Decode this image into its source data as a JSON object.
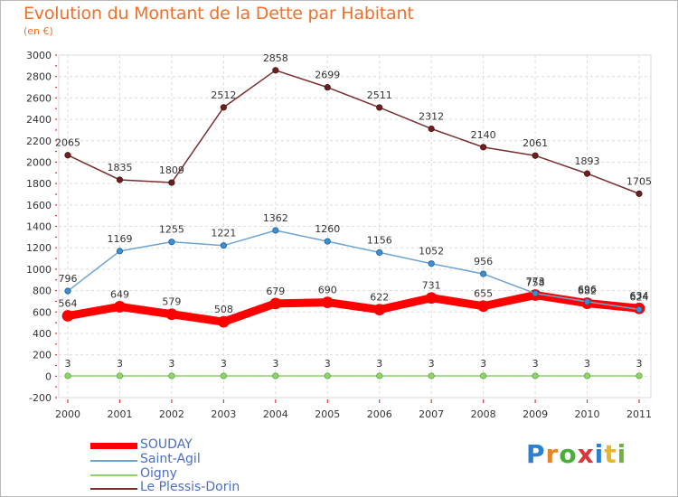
{
  "title": "Evolution du Montant de la Dette par Habitant",
  "subtitle": "(en €)",
  "logo_text": "Proxiti",
  "chart_data": {
    "type": "line",
    "x": [
      "2000",
      "2001",
      "2002",
      "2003",
      "2004",
      "2005",
      "2006",
      "2007",
      "2008",
      "2009",
      "2010",
      "2011"
    ],
    "ylim": [
      -200,
      3000
    ],
    "yticks": [
      -200,
      0,
      200,
      400,
      600,
      800,
      1000,
      1200,
      1400,
      1600,
      1800,
      2000,
      2200,
      2400,
      2600,
      2800,
      3000
    ],
    "grid": true,
    "legend_position": "bottom-left",
    "series": [
      {
        "name": "SOUDAY",
        "color": "#ff0000",
        "values": [
          564,
          649,
          579,
          508,
          679,
          690,
          622,
          731,
          655,
          758,
          682,
          634
        ]
      },
      {
        "name": "Saint-Agil",
        "color": "#6fa3d1",
        "values": [
          796,
          1169,
          1255,
          1221,
          1362,
          1260,
          1156,
          1052,
          956,
          773,
          696,
          624
        ]
      },
      {
        "name": "Oigny",
        "color": "#8ed46a",
        "values": [
          3,
          3,
          3,
          3,
          3,
          3,
          3,
          3,
          3,
          3,
          3,
          3
        ]
      },
      {
        "name": "Le Plessis-Dorin",
        "color": "#7a2e2e",
        "values": [
          2065,
          1835,
          1809,
          2512,
          2858,
          2699,
          2511,
          2312,
          2140,
          2061,
          1893,
          1705
        ]
      }
    ]
  }
}
